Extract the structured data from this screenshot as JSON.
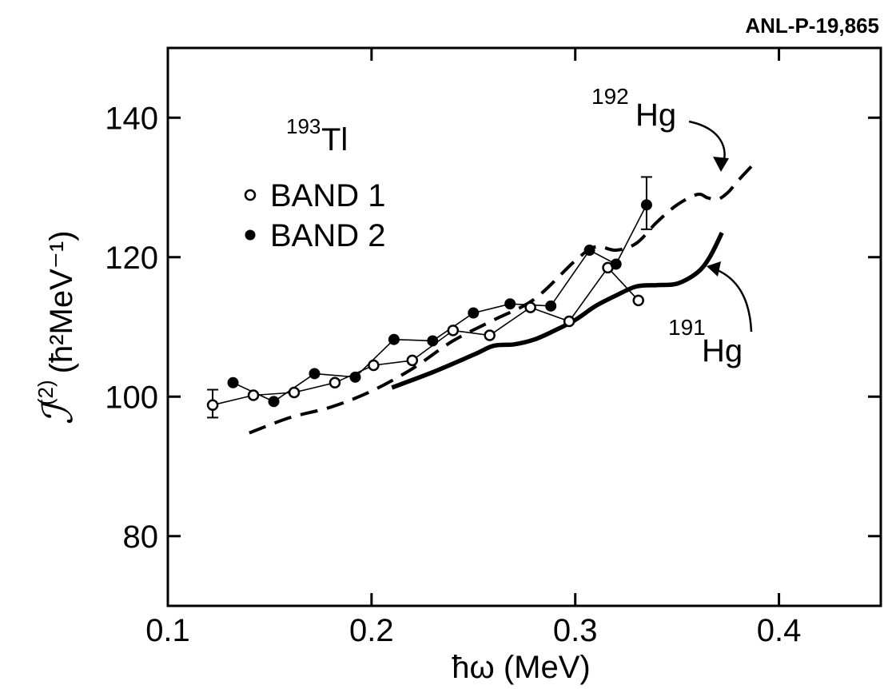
{
  "report_id": "ANL-P-19,865",
  "chart_data": {
    "type": "line",
    "xlabel": "ħω (MeV)",
    "ylabel_symbol": "ℐ",
    "ylabel_superscript": "(2)",
    "ylabel_units": "(ħ²MeV⁻¹)",
    "xlim": [
      0.1,
      0.45
    ],
    "ylim": [
      70,
      150
    ],
    "x_ticks": [
      0.1,
      0.2,
      0.3,
      0.4
    ],
    "x_tick_labels": [
      "0.1",
      "0.2",
      "0.3",
      "0.4"
    ],
    "y_ticks": [
      80,
      100,
      120,
      140
    ],
    "y_tick_labels": [
      "80",
      "100",
      "120",
      "140"
    ],
    "grid": false,
    "legend_position": "upper-left",
    "nucleus_label": {
      "mass": "193",
      "element": "Tl"
    },
    "series": [
      {
        "name": "BAND 1",
        "marker": "open-circle",
        "line": "thin",
        "x": [
          0.122,
          0.142,
          0.162,
          0.182,
          0.201,
          0.22,
          0.24,
          0.258,
          0.278,
          0.297,
          0.316,
          0.331
        ],
        "y": [
          98.8,
          100.2,
          100.6,
          102.0,
          104.5,
          105.2,
          109.5,
          108.8,
          112.8,
          110.8,
          118.5,
          113.8
        ],
        "error_bars": [
          {
            "x": 0.122,
            "low": 97.0,
            "high": 101.0
          }
        ]
      },
      {
        "name": "BAND 2",
        "marker": "filled-circle",
        "line": "thin",
        "x": [
          0.132,
          0.152,
          0.172,
          0.192,
          0.211,
          0.23,
          0.25,
          0.268,
          0.288,
          0.307,
          0.32,
          0.335
        ],
        "y": [
          102.0,
          99.3,
          103.3,
          102.8,
          108.2,
          108.0,
          112.0,
          113.3,
          113.0,
          121.0,
          119.0,
          127.5
        ],
        "error_bars": [
          {
            "x": 0.335,
            "low": 124.0,
            "high": 131.5
          }
        ]
      },
      {
        "name": "192Hg",
        "mass": "192",
        "element": "Hg",
        "line": "dashed",
        "x": [
          0.14,
          0.16,
          0.18,
          0.2,
          0.22,
          0.24,
          0.26,
          0.28,
          0.3,
          0.31,
          0.32,
          0.33,
          0.34,
          0.35,
          0.36,
          0.365,
          0.37,
          0.375,
          0.38,
          0.388
        ],
        "y": [
          94.8,
          97.0,
          98.5,
          100.8,
          104.0,
          108.0,
          111.0,
          114.0,
          119.5,
          121.5,
          121.0,
          122.0,
          125.0,
          127.5,
          129.0,
          128.5,
          128.3,
          129.3,
          131.0,
          133.5
        ]
      },
      {
        "name": "191Hg",
        "mass": "191",
        "element": "Hg",
        "line": "solid-thick",
        "x": [
          0.21,
          0.23,
          0.25,
          0.26,
          0.27,
          0.28,
          0.29,
          0.3,
          0.31,
          0.32,
          0.33,
          0.34,
          0.35,
          0.36,
          0.366,
          0.372
        ],
        "y": [
          101.3,
          103.5,
          106.0,
          107.3,
          107.5,
          108.2,
          109.5,
          111.0,
          113.0,
          114.5,
          115.8,
          116.0,
          116.2,
          117.8,
          120.0,
          123.5
        ]
      }
    ]
  }
}
